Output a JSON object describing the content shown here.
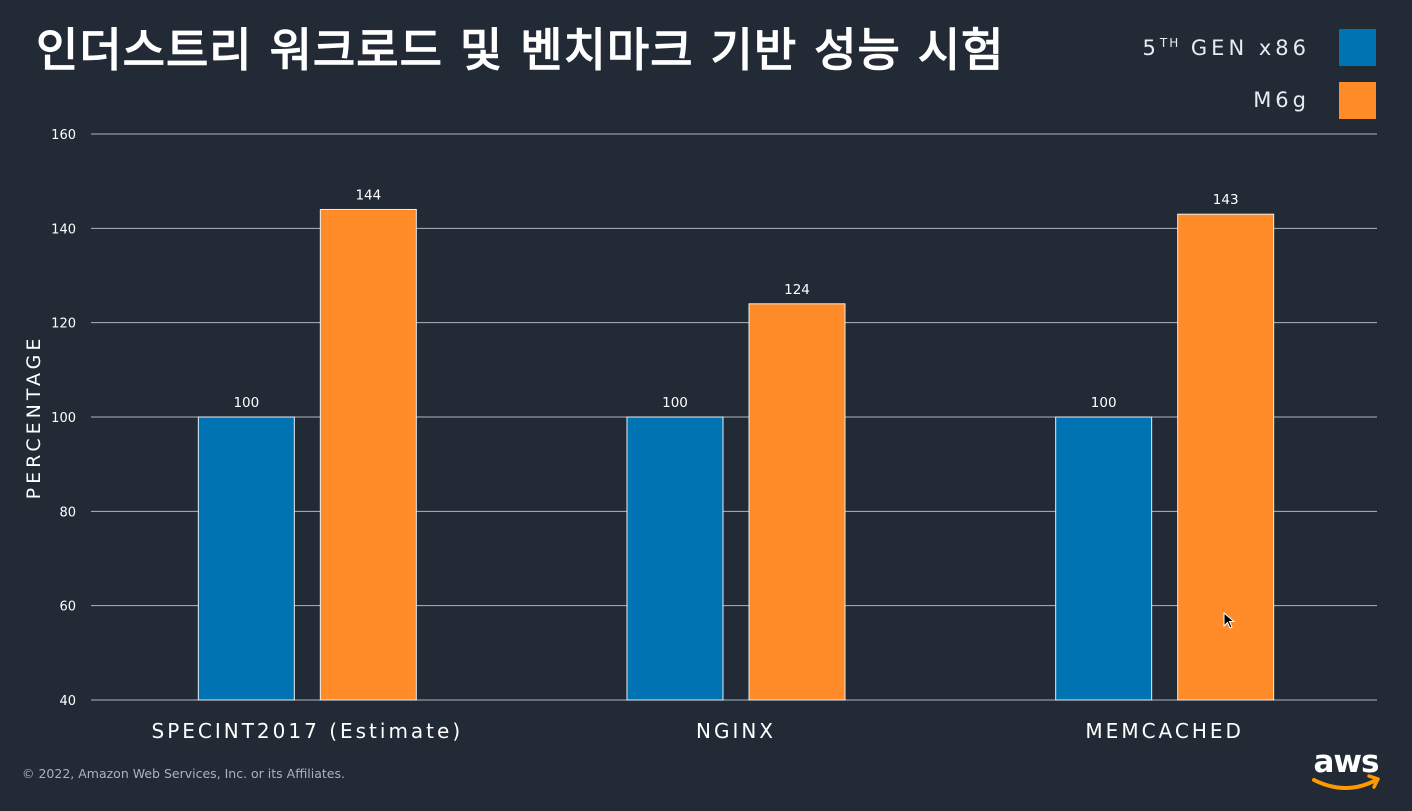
{
  "title": "인더스트리 워크로드 및 벤치마크 기반 성능 시험",
  "legend": [
    {
      "base": "5",
      "sup": "TH",
      "rest": " GEN x86",
      "color": "#0073b3"
    },
    {
      "base": "M6g",
      "sup": "",
      "rest": "",
      "color": "#ff8c28"
    }
  ],
  "footer": "© 2022, Amazon Web Services, Inc. or its Affiliates.",
  "logo_text": "aws",
  "chart_data": {
    "type": "bar",
    "title": "인더스트리 워크로드 및 벤치마크 기반 성능 시험",
    "xlabel": "",
    "ylabel": "PERCENTAGE",
    "categories": [
      "SPECINT2017 (Estimate)",
      "NGINX",
      "MEMCACHED"
    ],
    "series": [
      {
        "name": "5TH GEN x86",
        "values": [
          100,
          100,
          100
        ],
        "color": "#0073b3"
      },
      {
        "name": "M6g",
        "values": [
          144,
          124,
          143
        ],
        "color": "#ff8c28"
      }
    ],
    "ylim": [
      40,
      160
    ],
    "yticks": [
      40,
      60,
      80,
      100,
      120,
      140,
      160
    ],
    "grid": true,
    "legend_position": "top-right",
    "data_labels": true
  }
}
